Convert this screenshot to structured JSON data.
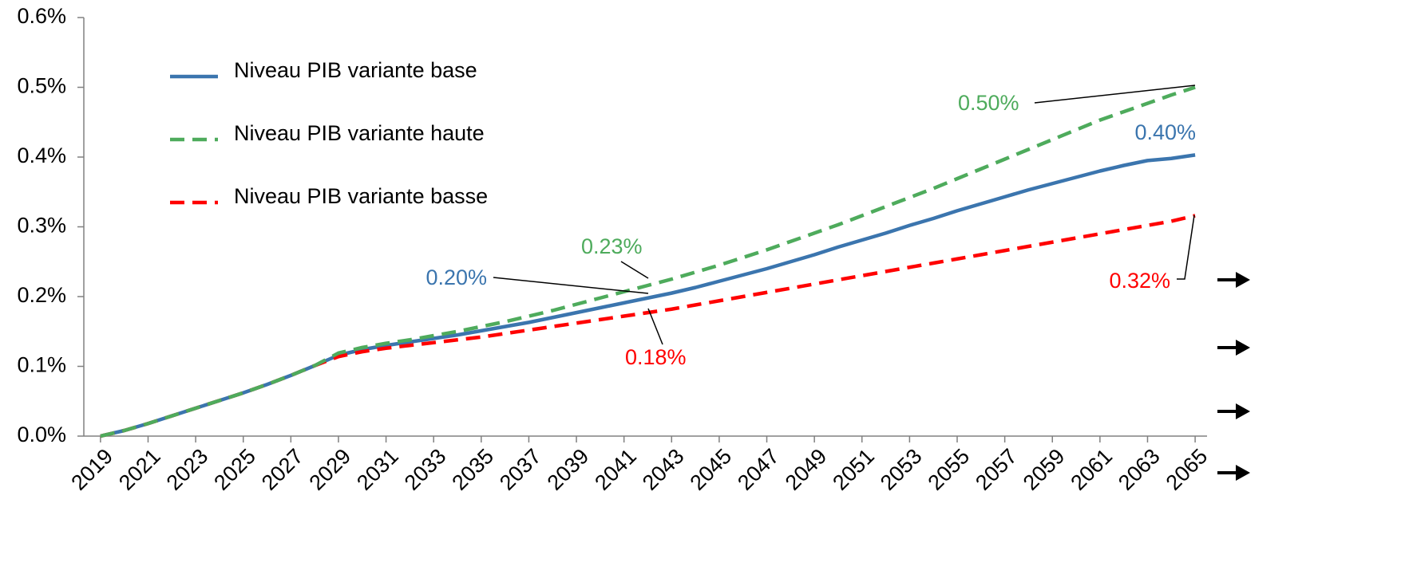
{
  "chart_data": {
    "type": "line",
    "x": [
      2019,
      2020,
      2021,
      2022,
      2023,
      2024,
      2025,
      2026,
      2027,
      2028,
      2029,
      2030,
      2031,
      2032,
      2033,
      2034,
      2035,
      2036,
      2037,
      2038,
      2039,
      2040,
      2041,
      2042,
      2043,
      2044,
      2045,
      2046,
      2047,
      2048,
      2049,
      2050,
      2051,
      2052,
      2053,
      2054,
      2055,
      2056,
      2057,
      2058,
      2059,
      2060,
      2061,
      2062,
      2063,
      2064,
      2065
    ],
    "xlim": [
      2018.3,
      2065.5
    ],
    "xticks": [
      2019,
      2021,
      2023,
      2025,
      2027,
      2029,
      2031,
      2033,
      2035,
      2037,
      2039,
      2041,
      2043,
      2045,
      2047,
      2049,
      2051,
      2053,
      2055,
      2057,
      2059,
      2061,
      2063,
      2065
    ],
    "ylim": [
      0,
      0.6
    ],
    "yticks": [
      {
        "value": 0,
        "label": "0.0%"
      },
      {
        "value": 0.1,
        "label": "0.1%"
      },
      {
        "value": 0.2,
        "label": "0.2%"
      },
      {
        "value": 0.3,
        "label": "0.3%"
      },
      {
        "value": 0.4,
        "label": "0.4%"
      },
      {
        "value": 0.5,
        "label": "0.5%"
      },
      {
        "value": 0.6,
        "label": "0.6%"
      }
    ],
    "grid": false,
    "legend": "upper left",
    "series": [
      {
        "name": "Niveau PIB variante base",
        "color": "#3b75ae",
        "dashed": false,
        "values": [
          0,
          0.008,
          0.018,
          0.029,
          0.04,
          0.051,
          0.062,
          0.074,
          0.087,
          0.101,
          0.116,
          0.124,
          0.13,
          0.135,
          0.14,
          0.145,
          0.151,
          0.157,
          0.163,
          0.17,
          0.177,
          0.184,
          0.191,
          0.198,
          0.205,
          0.213,
          0.222,
          0.231,
          0.24,
          0.25,
          0.26,
          0.271,
          0.281,
          0.291,
          0.302,
          0.312,
          0.323,
          0.333,
          0.343,
          0.353,
          0.362,
          0.371,
          0.38,
          0.388,
          0.395,
          0.398,
          0.403
        ]
      },
      {
        "name": "Niveau PIB variante haute",
        "color": "#4eab5c",
        "dashed": true,
        "values": [
          0,
          0.008,
          0.018,
          0.029,
          0.04,
          0.051,
          0.062,
          0.074,
          0.087,
          0.101,
          0.119,
          0.127,
          0.133,
          0.138,
          0.144,
          0.15,
          0.157,
          0.164,
          0.172,
          0.18,
          0.189,
          0.198,
          0.207,
          0.216,
          0.225,
          0.235,
          0.245,
          0.256,
          0.267,
          0.279,
          0.291,
          0.303,
          0.316,
          0.329,
          0.342,
          0.355,
          0.369,
          0.383,
          0.397,
          0.411,
          0.425,
          0.439,
          0.453,
          0.465,
          0.477,
          0.489,
          0.5
        ]
      },
      {
        "name": "Niveau PIB variante basse",
        "color": "#ff0000",
        "dashed": true,
        "values": [
          0,
          0.008,
          0.018,
          0.029,
          0.04,
          0.051,
          0.062,
          0.074,
          0.087,
          0.101,
          0.114,
          0.121,
          0.126,
          0.13,
          0.134,
          0.138,
          0.142,
          0.147,
          0.152,
          0.157,
          0.162,
          0.167,
          0.172,
          0.177,
          0.182,
          0.188,
          0.194,
          0.2,
          0.206,
          0.212,
          0.218,
          0.224,
          0.23,
          0.236,
          0.242,
          0.248,
          0.254,
          0.26,
          0.266,
          0.272,
          0.278,
          0.284,
          0.29,
          0.296,
          0.302,
          0.308,
          0.316
        ]
      }
    ],
    "annotations": [
      {
        "text": "0.50%",
        "color": "#4eab5c"
      },
      {
        "text": "0.40%",
        "color": "#3b75ae"
      },
      {
        "text": "0.23%",
        "color": "#4eab5c"
      },
      {
        "text": "0.20%",
        "color": "#3b75ae"
      },
      {
        "text": "0.18%",
        "color": "#ff0000"
      },
      {
        "text": "0.32%",
        "color": "#ff0000"
      }
    ]
  }
}
